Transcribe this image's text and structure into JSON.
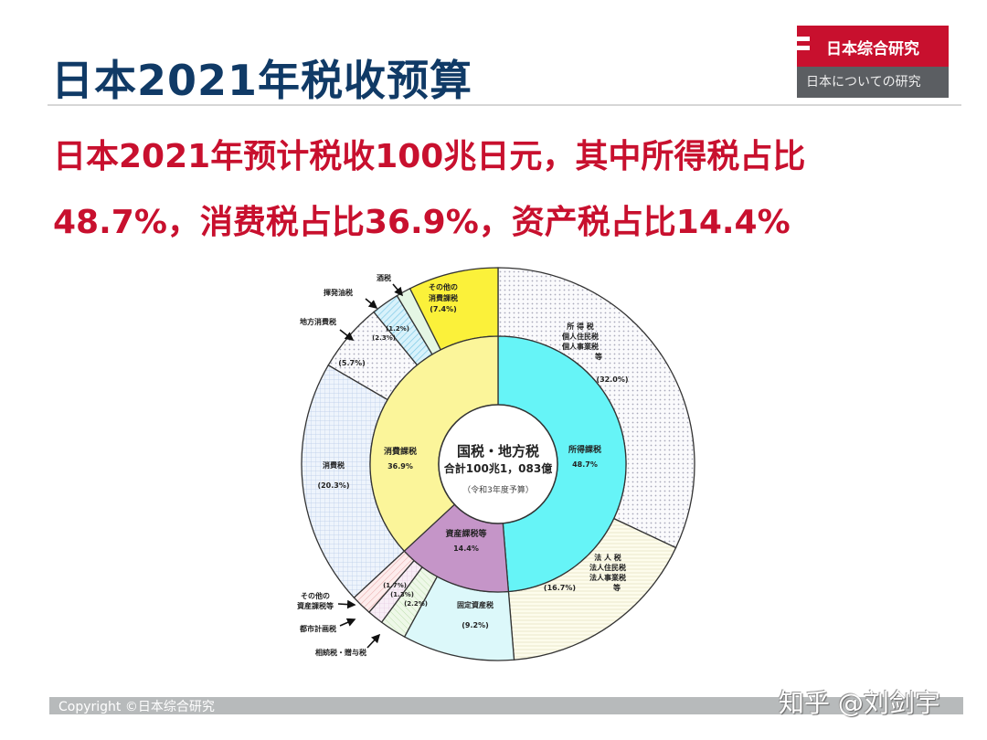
{
  "header": {
    "title": "日本2021年税收预算",
    "logo_main": "日本综合研究",
    "logo_sub": "日本についての研究"
  },
  "summary": {
    "line1": "日本2021年预计税收100兆日元，其中所得税占比",
    "line2": "48.7%，消费税占比36.9%，资产税占比14.4%"
  },
  "center": {
    "title": "国税・地方税",
    "total": "合計100兆1，083億",
    "note": "（令和3年度予算）"
  },
  "footer": {
    "copyright": "Copyright ©日本综合研究",
    "watermark": "知乎 @刘剑宇"
  },
  "chart_data": {
    "type": "pie",
    "title": "国税・地方税 合計100兆1，083億（令和3年度予算）",
    "rings": [
      {
        "name": "inner",
        "series": [
          {
            "label": "所得課税",
            "value": 48.7,
            "color": "#66f4f7"
          },
          {
            "label": "資産課税等",
            "value": 14.4,
            "color": "#c595c8"
          },
          {
            "label": "消費課税",
            "value": 36.9,
            "color": "#fbf59a"
          }
        ]
      },
      {
        "name": "outer",
        "series": [
          {
            "label": "所得税・個人住民税・個人事業税等",
            "value": 32.0,
            "color": "#f2f2f7"
          },
          {
            "label": "法人税・法人住民税・法人事業税等",
            "value": 16.7,
            "color": "#fcfbe8"
          },
          {
            "label": "固定資産税",
            "value": 9.2,
            "color": "#dcf8fa"
          },
          {
            "label": "相続税・贈与税",
            "value": 2.2,
            "color": "#e8f6e0"
          },
          {
            "label": "都市計画税",
            "value": 1.3,
            "color": "#f6e6f2"
          },
          {
            "label": "その他の資産課税等",
            "value": 1.7,
            "color": "#fbe2e2"
          },
          {
            "label": "消費税",
            "value": 20.3,
            "color": "#e4eefa"
          },
          {
            "label": "地方消費税",
            "value": 5.7,
            "color": "#f0f2f8"
          },
          {
            "label": "揮発油税",
            "value": 2.3,
            "color": "#c9ecf7"
          },
          {
            "label": "酒税",
            "value": 1.2,
            "color": "#e4f6e4"
          },
          {
            "label": "その他の消費課税",
            "value": 7.4,
            "color": "#fbf13a"
          }
        ]
      }
    ],
    "labels": {
      "inner": [
        {
          "name": "所得課税",
          "pct": "48.7%"
        },
        {
          "name": "資産課税等",
          "pct": "14.4%"
        },
        {
          "name": "消費課税",
          "pct": "36.9%"
        }
      ],
      "outer": [
        {
          "lines": [
            "所 得 税",
            "個人住民税",
            "個人事業税",
            "等"
          ],
          "pct": "(32.0%)"
        },
        {
          "lines": [
            "法 人 税",
            "法人住民税",
            "法人事業税",
            "等"
          ],
          "pct": "(16.7%)"
        },
        {
          "lines": [
            "固定資産税"
          ],
          "pct": "(9.2%)"
        },
        {
          "lines": [
            "相続税・贈与税"
          ],
          "pct": "(2.2%)"
        },
        {
          "lines": [
            "都市計画税"
          ],
          "pct": "(1.3%)"
        },
        {
          "lines": [
            "その他の",
            "資産課税等"
          ],
          "pct": "(1.7%)"
        },
        {
          "lines": [
            "消費税"
          ],
          "pct": "(20.3%)"
        },
        {
          "lines": [
            "地方消費税"
          ],
          "pct": "(5.7%)"
        },
        {
          "lines": [
            "揮発油税"
          ],
          "pct": "(2.3%)"
        },
        {
          "lines": [
            "酒税"
          ],
          "pct": "(1.2%)"
        },
        {
          "lines": [
            "その他の",
            "消費課税"
          ],
          "pct": "(7.4%)"
        }
      ]
    }
  }
}
